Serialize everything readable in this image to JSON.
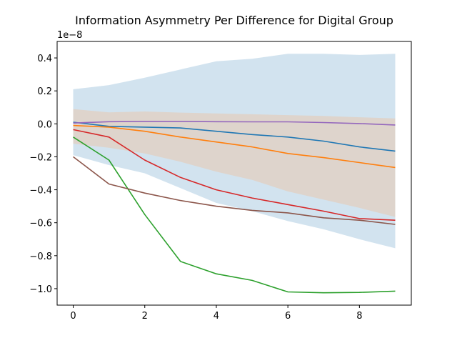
{
  "chart_data": {
    "type": "line",
    "title": "Information Asymmetry Per Difference for Digital Group",
    "offset_label": "1e−8",
    "xlabel": "",
    "ylabel": "",
    "xlim": [
      -0.45,
      9.45
    ],
    "ylim": [
      -1.1,
      0.5
    ],
    "x_ticks": [
      0,
      2,
      4,
      6,
      8
    ],
    "y_ticks": [
      0.4,
      0.2,
      0.0,
      -0.2,
      -0.4,
      -0.6,
      -0.8,
      -1.0
    ],
    "y_tick_labels": [
      "0.4",
      "0.2",
      "0.0",
      "−0.2",
      "−0.4",
      "−0.6",
      "−0.8",
      "−1.0"
    ],
    "grid": false,
    "x": [
      0,
      1,
      2,
      3,
      4,
      5,
      6,
      7,
      8,
      9
    ],
    "bands": [
      {
        "color": "#a6c8e0",
        "opacity": 0.5,
        "upper": [
          0.21,
          0.235,
          0.28,
          0.33,
          0.38,
          0.395,
          0.425,
          0.425,
          0.418,
          0.425
        ],
        "lower": [
          -0.19,
          -0.25,
          -0.3,
          -0.39,
          -0.48,
          -0.53,
          -0.59,
          -0.64,
          -0.7,
          -0.755
        ]
      },
      {
        "color": "#e8c8ae",
        "opacity": 0.55,
        "upper": [
          0.09,
          0.07,
          0.075,
          0.068,
          0.063,
          0.058,
          0.053,
          0.048,
          0.04,
          0.033
        ],
        "lower": [
          -0.12,
          -0.145,
          -0.18,
          -0.23,
          -0.29,
          -0.34,
          -0.41,
          -0.46,
          -0.51,
          -0.565
        ]
      }
    ],
    "series": [
      {
        "color": "#1f77b4",
        "values": [
          0.01,
          -0.015,
          -0.02,
          -0.025,
          -0.045,
          -0.065,
          -0.08,
          -0.105,
          -0.14,
          -0.165
        ]
      },
      {
        "color": "#ff7f0e",
        "values": [
          -0.01,
          -0.02,
          -0.045,
          -0.08,
          -0.11,
          -0.14,
          -0.18,
          -0.205,
          -0.235,
          -0.265
        ]
      },
      {
        "color": "#2ca02c",
        "values": [
          -0.08,
          -0.22,
          -0.55,
          -0.835,
          -0.91,
          -0.95,
          -1.02,
          -1.025,
          -1.023,
          -1.015
        ]
      },
      {
        "color": "#d62728",
        "values": [
          -0.035,
          -0.08,
          -0.22,
          -0.325,
          -0.4,
          -0.45,
          -0.49,
          -0.53,
          -0.575,
          -0.585
        ]
      },
      {
        "color": "#9467bd",
        "values": [
          0.005,
          0.013,
          0.015,
          0.015,
          0.013,
          0.012,
          0.012,
          0.008,
          0.002,
          -0.007
        ]
      },
      {
        "color": "#8c564b",
        "values": [
          -0.2,
          -0.365,
          -0.42,
          -0.465,
          -0.5,
          -0.525,
          -0.54,
          -0.57,
          -0.585,
          -0.61
        ]
      }
    ]
  }
}
